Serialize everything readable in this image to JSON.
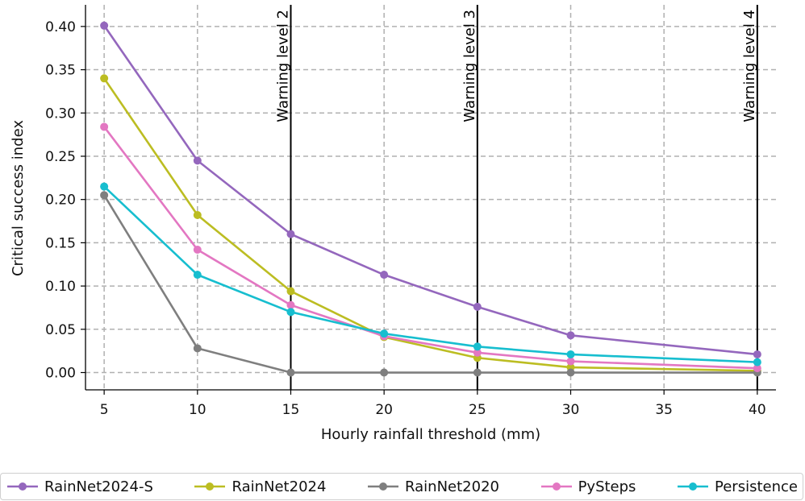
{
  "chart_data": {
    "type": "line",
    "xlabel": "Hourly rainfall threshold (mm)",
    "ylabel": "Critical success index",
    "xlim": [
      4,
      41
    ],
    "ylim": [
      -0.02,
      0.425
    ],
    "x_ticks": [
      5,
      10,
      15,
      20,
      25,
      30,
      35,
      40
    ],
    "y_ticks": [
      0.0,
      0.05,
      0.1,
      0.15,
      0.2,
      0.25,
      0.3,
      0.35,
      0.4
    ],
    "y_tick_labels": [
      "0.00",
      "0.05",
      "0.10",
      "0.15",
      "0.20",
      "0.25",
      "0.30",
      "0.35",
      "0.40"
    ],
    "grid": true,
    "legend_placement": "bottom",
    "x": [
      5,
      10,
      15,
      20,
      25,
      30,
      40
    ],
    "series": [
      {
        "name": "RainNet2024-S",
        "color": "#9467bd",
        "values": [
          0.401,
          0.245,
          0.16,
          0.113,
          0.076,
          0.043,
          0.021
        ]
      },
      {
        "name": "RainNet2024",
        "color": "#bcbd22",
        "values": [
          0.34,
          0.182,
          0.094,
          0.041,
          0.017,
          0.006,
          0.002
        ]
      },
      {
        "name": "RainNet2020",
        "color": "#7f7f7f",
        "values": [
          0.205,
          0.028,
          0.0,
          0.0,
          0.0,
          0.0,
          0.0
        ]
      },
      {
        "name": "PySteps",
        "color": "#e377c2",
        "values": [
          0.284,
          0.142,
          0.078,
          0.042,
          0.023,
          0.013,
          0.005
        ]
      },
      {
        "name": "Persistence",
        "color": "#17becf",
        "values": [
          0.215,
          0.113,
          0.07,
          0.045,
          0.03,
          0.021,
          0.012
        ]
      }
    ],
    "reference_lines": [
      {
        "x": 15,
        "label": "Warning level 2"
      },
      {
        "x": 25,
        "label": "Warning level 3"
      },
      {
        "x": 40,
        "label": "Warning level 4"
      }
    ]
  }
}
